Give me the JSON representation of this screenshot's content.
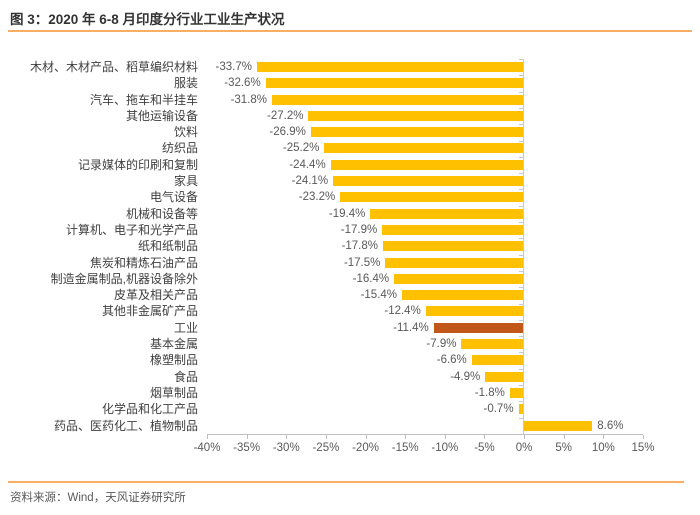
{
  "header": {
    "title": "图 3：2020 年 6-8 月印度分行业工业生产状况"
  },
  "footer": {
    "source": "资料来源：Wind，天风证券研究所"
  },
  "colors": {
    "bar": "#FFC000",
    "highlight_bar": "#C2571A",
    "accent_line": "#F9AE63",
    "axis_line": "#BFBFBF",
    "text_secondary": "#595959",
    "text_category": "#3F3F3F"
  },
  "chart_data": {
    "type": "bar",
    "orientation": "horizontal",
    "title": "2020 年 6-8 月印度分行业工业生产状况",
    "xlabel": "",
    "ylabel": "",
    "xlim": [
      -40,
      15
    ],
    "grid": false,
    "legend": false,
    "categories": [
      "木材、木材产品、稻草编织材料",
      "服装",
      "汽车、拖车和半挂车",
      "其他运输设备",
      "饮料",
      "纺织品",
      "记录媒体的印刷和复制",
      "家具",
      "电气设备",
      "机械和设备等",
      "计算机、电子和光学产品",
      "纸和纸制品",
      "焦炭和精炼石油产品",
      "制造金属制品,机器设备除外",
      "皮革及相关产品",
      "其他非金属矿产品",
      "工业",
      "基本金属",
      "橡塑制品",
      "食品",
      "烟草制品",
      "化学品和化工产品",
      "药品、医药化工、植物制品"
    ],
    "values": [
      -33.7,
      -32.6,
      -31.8,
      -27.2,
      -26.9,
      -25.2,
      -24.4,
      -24.1,
      -23.2,
      -19.4,
      -17.9,
      -17.8,
      -17.5,
      -16.4,
      -15.4,
      -12.4,
      -11.4,
      -7.9,
      -6.6,
      -4.9,
      -1.8,
      -0.7,
      8.6
    ],
    "value_labels": [
      "-33.7%",
      "-32.6%",
      "-31.8%",
      "-27.2%",
      "-26.9%",
      "-25.2%",
      "-24.4%",
      "-24.1%",
      "-23.2%",
      "-19.4%",
      "-17.9%",
      "-17.8%",
      "-17.5%",
      "-16.4%",
      "-15.4%",
      "-12.4%",
      "-11.4%",
      "-7.9%",
      "-6.6%",
      "-4.9%",
      "-1.8%",
      "-0.7%",
      "8.6%"
    ],
    "highlight_index": 16,
    "highlight_category": "工业",
    "x_ticks": [
      {
        "value": -40,
        "label": "-40%"
      },
      {
        "value": -35,
        "label": "-35%"
      },
      {
        "value": -30,
        "label": "-30%"
      },
      {
        "value": -25,
        "label": "-25%"
      },
      {
        "value": -20,
        "label": "-20%"
      },
      {
        "value": -15,
        "label": "-15%"
      },
      {
        "value": -10,
        "label": "-10%"
      },
      {
        "value": -5,
        "label": "-5%"
      },
      {
        "value": 0,
        "label": "0%"
      },
      {
        "value": 5,
        "label": "5%"
      },
      {
        "value": 10,
        "label": "10%"
      },
      {
        "value": 15,
        "label": "15%"
      }
    ]
  }
}
